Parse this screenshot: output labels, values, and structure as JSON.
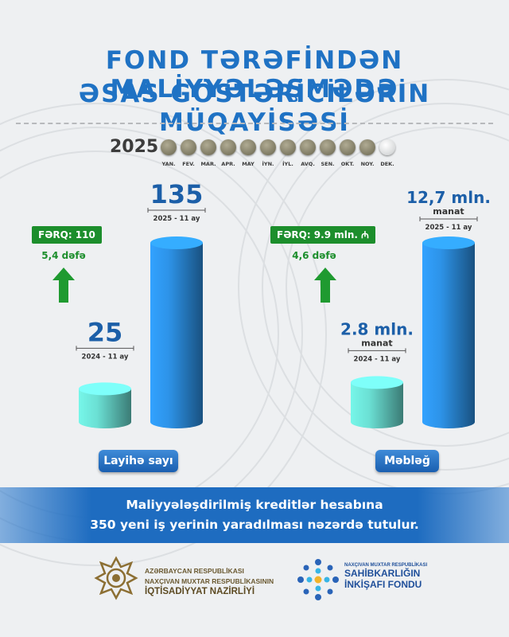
{
  "title": {
    "line1": "FOND TƏRƏFİNDƏN MALİYYƏLƏŞMƏDƏ",
    "line2": "ƏSAS GÖSTƏRİCİLƏRİN MÜQAYİSƏSİ"
  },
  "timeline": {
    "year": "2025",
    "months": [
      "YAN.",
      "FEV.",
      "MAR.",
      "APR.",
      "MAY",
      "İYN.",
      "İYL.",
      "AVQ.",
      "SEN.",
      "OKT.",
      "NOY.",
      "DEK."
    ],
    "completed_months": 11,
    "colors": {
      "done": "#8a8670",
      "pending": "#d9dbdc"
    }
  },
  "chart_data": [
    {
      "type": "bar",
      "category_label": "Layihə sayı",
      "bars": [
        {
          "value": 25,
          "label": "25",
          "unit": "",
          "period": "2024 - 11 ay",
          "color": "#6be0d4"
        },
        {
          "value": 135,
          "label": "135",
          "unit": "",
          "period": "2025 - 11 ay",
          "color": "#2d93e8"
        }
      ],
      "difference": "FƏRQ: 110",
      "ratio": "5,4 dəfə"
    },
    {
      "type": "bar",
      "category_label": "Məbləğ",
      "bars": [
        {
          "value": 2.8,
          "label": "2.8 mln.",
          "unit": "manat",
          "period": "2024 - 11 ay",
          "color": "#6be0d4"
        },
        {
          "value": 12.7,
          "label": "12,7 mln.",
          "unit": "manat",
          "period": "2025 - 11 ay",
          "color": "#2d93e8"
        }
      ],
      "difference": "FƏRQ: 9.9 mln. ₼",
      "ratio": "4,6 dəfə"
    }
  ],
  "banner": {
    "line1": "Maliyyələşdirilmiş kreditlər hesabına",
    "line2": "350 yeni iş yerinin yaradılması nəzərdə tutulur."
  },
  "logos": {
    "left": {
      "line1": "AZƏRBAYCAN RESPUBLİKASI",
      "line2": "NAXÇIVAN MUXTAR RESPUBLİKASININ",
      "line3": "İQTİSADİYYAT NAZİRLİYİ",
      "icon": "emblem-icon"
    },
    "right": {
      "line1": "NAXÇIVAN MUXTAR RESPUBLİKASI",
      "line2": "SAHİBKARLIĞIN",
      "line3": "İNKİŞAFI FONDU",
      "icon": "fund-logo-icon"
    }
  },
  "colors": {
    "title": "#1f72c4",
    "value": "#1c5fa8",
    "accent_green": "#1c8e2c",
    "banner": "#1e6cc0"
  }
}
